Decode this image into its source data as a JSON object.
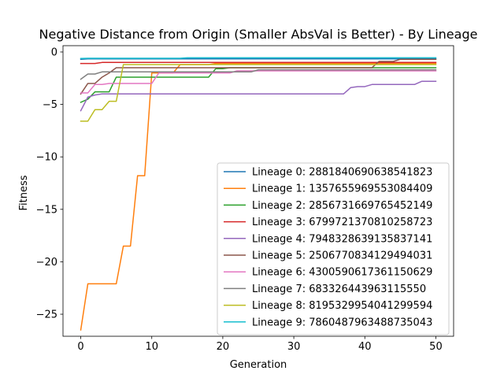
{
  "chart_data": {
    "type": "line",
    "title": "Negative Distance from Origin (Smaller AbsVal is Better) - By Lineage",
    "xlabel": "Generation",
    "ylabel": "Fitness",
    "xlim": [
      -2.5,
      52.5
    ],
    "ylim": [
      -27.1,
      0.6
    ],
    "xticks": [
      0,
      10,
      20,
      30,
      40,
      50
    ],
    "yticks": [
      0,
      -5,
      -10,
      -15,
      -20,
      -25
    ],
    "grid": false,
    "legend_position": "lower-right",
    "x": [
      0,
      1,
      2,
      3,
      4,
      5,
      6,
      7,
      8,
      9,
      10,
      11,
      12,
      13,
      14,
      15,
      16,
      17,
      18,
      19,
      20,
      21,
      22,
      23,
      24,
      25,
      26,
      27,
      28,
      29,
      30,
      31,
      32,
      33,
      34,
      35,
      36,
      37,
      38,
      39,
      40,
      41,
      42,
      43,
      44,
      45,
      46,
      47,
      48,
      49,
      50
    ],
    "series": [
      {
        "name": "Lineage 0: 2881840690638541823",
        "color": "#1f77b4",
        "values": [
          -0.7,
          -0.66,
          -0.66,
          -0.66,
          -0.66,
          -0.66,
          -0.66,
          -0.66,
          -0.66,
          -0.66,
          -0.66,
          -0.66,
          -0.66,
          -0.66,
          -0.66,
          -0.66,
          -0.66,
          -0.66,
          -0.66,
          -0.66,
          -0.66,
          -0.66,
          -0.66,
          -0.66,
          -0.66,
          -0.66,
          -0.66,
          -0.66,
          -0.66,
          -0.66,
          -0.66,
          -0.66,
          -0.66,
          -0.66,
          -0.66,
          -0.66,
          -0.66,
          -0.66,
          -0.66,
          -0.66,
          -0.66,
          -0.66,
          -0.66,
          -0.66,
          -0.66,
          -0.66,
          -0.66,
          -0.66,
          -0.66,
          -0.66,
          -0.66
        ]
      },
      {
        "name": "Lineage 1: 1357655969553084409",
        "color": "#ff7f0e",
        "values": [
          -26.5,
          -22.1,
          -22.1,
          -22.1,
          -22.1,
          -22.1,
          -18.5,
          -18.5,
          -11.8,
          -11.8,
          -2.0,
          -2.0,
          -2.0,
          -2.0,
          -1.2,
          -1.2,
          -1.2,
          -1.2,
          -1.2,
          -1.1,
          -1.1,
          -1.1,
          -1.1,
          -1.1,
          -1.1,
          -1.1,
          -1.1,
          -1.1,
          -1.1,
          -1.1,
          -1.1,
          -1.1,
          -1.1,
          -1.1,
          -1.1,
          -1.1,
          -1.1,
          -1.1,
          -1.1,
          -1.1,
          -1.1,
          -1.1,
          -1.1,
          -1.1,
          -1.1,
          -1.1,
          -1.1,
          -1.1,
          -1.1,
          -1.1,
          -1.1
        ]
      },
      {
        "name": "Lineage 2: 2856731669765452149",
        "color": "#2ca02c",
        "values": [
          -4.8,
          -4.5,
          -3.8,
          -3.8,
          -3.8,
          -2.4,
          -2.4,
          -2.4,
          -2.4,
          -2.4,
          -2.4,
          -2.4,
          -2.4,
          -2.4,
          -2.4,
          -2.4,
          -2.4,
          -2.4,
          -2.4,
          -1.6,
          -1.6,
          -1.5,
          -1.5,
          -1.5,
          -1.5,
          -1.5,
          -1.5,
          -1.5,
          -1.5,
          -1.5,
          -1.5,
          -1.5,
          -1.5,
          -1.5,
          -1.5,
          -1.5,
          -1.5,
          -1.5,
          -1.5,
          -1.5,
          -1.5,
          -1.5,
          -1.5,
          -1.5,
          -1.5,
          -1.5,
          -1.5,
          -1.5,
          -1.5,
          -1.5,
          -1.5
        ]
      },
      {
        "name": "Lineage 3: 6799721370810258723",
        "color": "#d62728",
        "values": [
          -1.1,
          -1.1,
          -1.1,
          -1.0,
          -1.0,
          -1.0,
          -1.0,
          -1.0,
          -1.0,
          -1.0,
          -1.0,
          -1.0,
          -1.0,
          -1.0,
          -1.0,
          -1.0,
          -1.0,
          -1.0,
          -1.0,
          -1.0,
          -1.0,
          -1.0,
          -1.0,
          -1.0,
          -1.0,
          -1.0,
          -1.0,
          -1.0,
          -1.0,
          -1.0,
          -1.0,
          -1.0,
          -1.0,
          -1.0,
          -1.0,
          -1.0,
          -1.0,
          -1.0,
          -1.0,
          -1.0,
          -1.0,
          -1.0,
          -1.0,
          -1.0,
          -1.0,
          -1.0,
          -1.0,
          -1.0,
          -1.0,
          -1.0,
          -1.0
        ]
      },
      {
        "name": "Lineage 4: 7948328639135837141",
        "color": "#9467bd",
        "values": [
          -5.6,
          -4.3,
          -4.1,
          -4.0,
          -4.0,
          -4.0,
          -4.0,
          -4.0,
          -4.0,
          -4.0,
          -4.0,
          -4.0,
          -4.0,
          -4.0,
          -4.0,
          -4.0,
          -4.0,
          -4.0,
          -4.0,
          -4.0,
          -4.0,
          -4.0,
          -4.0,
          -4.0,
          -4.0,
          -4.0,
          -4.0,
          -4.0,
          -4.0,
          -4.0,
          -4.0,
          -4.0,
          -4.0,
          -4.0,
          -4.0,
          -4.0,
          -4.0,
          -4.0,
          -3.4,
          -3.3,
          -3.3,
          -3.1,
          -3.1,
          -3.1,
          -3.1,
          -3.1,
          -3.1,
          -3.1,
          -2.8,
          -2.8,
          -2.8
        ]
      },
      {
        "name": "Lineage 5: 2506770834129494031",
        "color": "#8c564b",
        "values": [
          -4.0,
          -3.0,
          -3.0,
          -2.4,
          -2.0,
          -1.5,
          -1.5,
          -1.5,
          -1.5,
          -1.5,
          -1.5,
          -1.5,
          -1.5,
          -1.5,
          -1.5,
          -1.5,
          -1.5,
          -1.5,
          -1.5,
          -1.5,
          -1.5,
          -1.5,
          -1.5,
          -1.5,
          -1.5,
          -1.5,
          -1.5,
          -1.5,
          -1.5,
          -1.5,
          -1.5,
          -1.5,
          -1.5,
          -1.5,
          -1.5,
          -1.5,
          -1.5,
          -1.5,
          -1.5,
          -1.5,
          -1.5,
          -1.5,
          -0.9,
          -0.9,
          -0.9,
          -0.7,
          -0.7,
          -0.7,
          -0.7,
          -0.7,
          -0.7
        ]
      },
      {
        "name": "Lineage 6: 4300590617361150629",
        "color": "#e377c2",
        "values": [
          -3.9,
          -3.9,
          -3.1,
          -3.1,
          -3.0,
          -3.0,
          -3.0,
          -3.0,
          -3.0,
          -3.0,
          -3.0,
          -2.0,
          -2.0,
          -2.0,
          -2.0,
          -2.0,
          -2.0,
          -2.0,
          -2.0,
          -2.0,
          -2.0,
          -2.0,
          -1.8,
          -1.8,
          -1.8,
          -1.8,
          -1.8,
          -1.8,
          -1.8,
          -1.8,
          -1.8,
          -1.8,
          -1.8,
          -1.8,
          -1.8,
          -1.8,
          -1.8,
          -1.8,
          -1.8,
          -1.8,
          -1.8,
          -1.8,
          -1.8,
          -1.8,
          -1.8,
          -1.8,
          -1.8,
          -1.8,
          -1.8,
          -1.8,
          -1.8
        ]
      },
      {
        "name": "Lineage 7: 683326443963115550",
        "color": "#7f7f7f",
        "values": [
          -2.6,
          -2.1,
          -2.1,
          -1.9,
          -1.9,
          -1.9,
          -1.9,
          -1.9,
          -1.9,
          -1.9,
          -1.9,
          -1.9,
          -1.9,
          -1.9,
          -1.9,
          -1.9,
          -1.9,
          -1.9,
          -1.9,
          -1.9,
          -1.9,
          -1.9,
          -1.9,
          -1.9,
          -1.9,
          -1.7,
          -1.7,
          -1.7,
          -1.7,
          -1.7,
          -1.7,
          -1.7,
          -1.7,
          -1.7,
          -1.7,
          -1.7,
          -1.7,
          -1.7,
          -1.7,
          -1.7,
          -1.7,
          -1.7,
          -1.7,
          -1.7,
          -1.7,
          -1.7,
          -1.7,
          -1.7,
          -1.7,
          -1.7,
          -1.7
        ]
      },
      {
        "name": "Lineage 8: 8195329954041299594",
        "color": "#bcbd22",
        "values": [
          -6.6,
          -6.6,
          -5.5,
          -5.5,
          -4.7,
          -4.7,
          -1.2,
          -1.2,
          -1.2,
          -1.2,
          -1.2,
          -1.2,
          -1.2,
          -1.2,
          -1.2,
          -1.2,
          -1.2,
          -1.2,
          -1.2,
          -1.2,
          -1.2,
          -1.2,
          -1.2,
          -1.2,
          -1.2,
          -1.2,
          -1.2,
          -1.2,
          -1.2,
          -1.2,
          -1.2,
          -1.2,
          -1.2,
          -1.2,
          -1.2,
          -1.2,
          -1.2,
          -1.2,
          -1.2,
          -1.2,
          -1.2,
          -1.2,
          -1.2,
          -1.2,
          -1.2,
          -1.2,
          -1.2,
          -1.2,
          -1.2,
          -1.2,
          -1.2
        ]
      },
      {
        "name": "Lineage 9: 7860487963488735043",
        "color": "#17becf",
        "values": [
          -0.62,
          -0.6,
          -0.6,
          -0.6,
          -0.6,
          -0.6,
          -0.6,
          -0.6,
          -0.6,
          -0.6,
          -0.6,
          -0.6,
          -0.6,
          -0.6,
          -0.6,
          -0.55,
          -0.55,
          -0.55,
          -0.55,
          -0.55,
          -0.55,
          -0.55,
          -0.55,
          -0.55,
          -0.55,
          -0.55,
          -0.55,
          -0.55,
          -0.55,
          -0.55,
          -0.55,
          -0.55,
          -0.55,
          -0.55,
          -0.55,
          -0.55,
          -0.55,
          -0.55,
          -0.55,
          -0.55,
          -0.55,
          -0.55,
          -0.55,
          -0.55,
          -0.55,
          -0.55,
          -0.55,
          -0.55,
          -0.55,
          -0.55,
          -0.55
        ]
      }
    ]
  }
}
